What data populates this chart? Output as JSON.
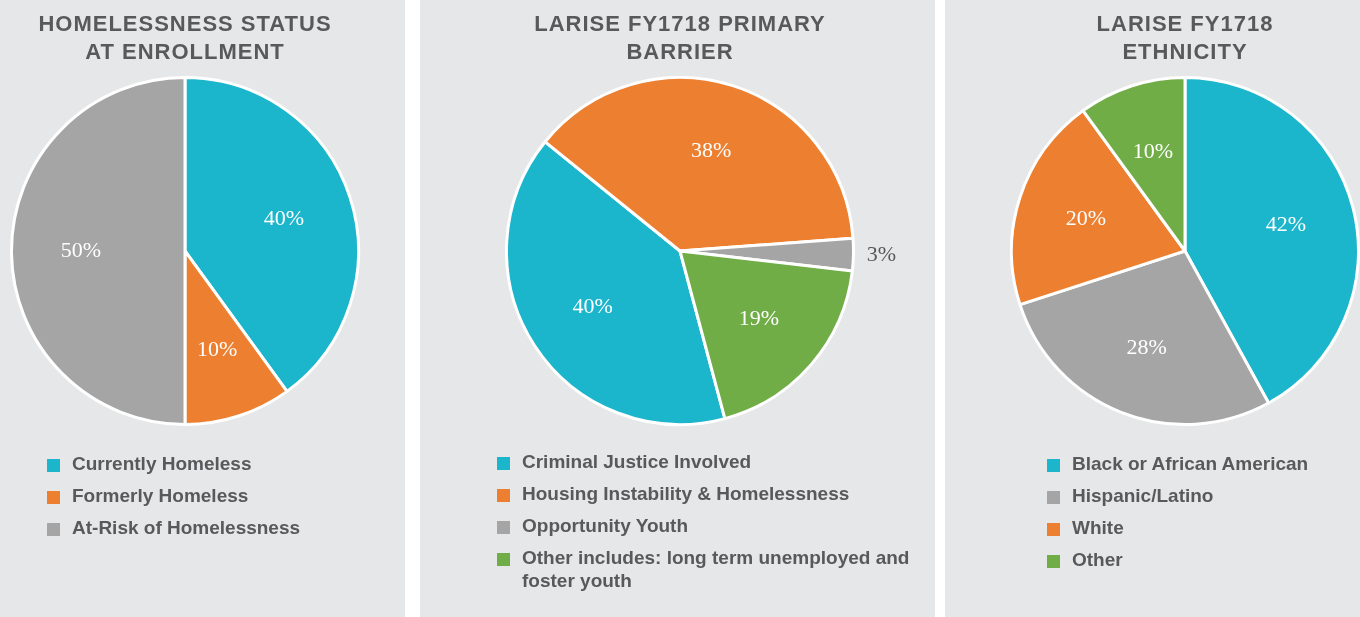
{
  "chart_data": [
    {
      "type": "pie",
      "title": "HOMELESSNESS STATUS AT ENROLLMENT",
      "categories": [
        "Currently Homeless",
        "Formerly Homeless",
        "At-Risk of Homelessness"
      ],
      "values": [
        40,
        10,
        50
      ],
      "colors": [
        "#1bb5cc",
        "#ed7f31",
        "#a5a5a5"
      ],
      "value_labels": [
        "40%",
        "10%",
        "50%"
      ],
      "legend": "bottom"
    },
    {
      "type": "pie",
      "title": "LARISE FY1718 PRIMARY BARRIER",
      "categories": [
        "Criminal Justice Involved",
        "Housing Instability & Homelessness",
        "Opportunity Youth",
        "Other includes: long term unemployed and foster youth"
      ],
      "values": [
        40,
        38,
        3,
        19
      ],
      "colors": [
        "#1bb5cc",
        "#ed7f31",
        "#a5a5a5",
        "#70ad47"
      ],
      "value_labels": [
        "40%",
        "38%",
        "3%",
        "19%"
      ],
      "legend": "bottom"
    },
    {
      "type": "pie",
      "title": "LARISE FY1718 ETHNICITY",
      "categories": [
        "Black or African American",
        "Hispanic/Latino",
        "White",
        "Other"
      ],
      "values": [
        42,
        28,
        20,
        10
      ],
      "colors": [
        "#1bb5cc",
        "#a5a5a5",
        "#ed7f31",
        "#70ad47"
      ],
      "value_labels": [
        "42%",
        "28%",
        "20%",
        "10%"
      ],
      "legend": "bottom"
    }
  ]
}
